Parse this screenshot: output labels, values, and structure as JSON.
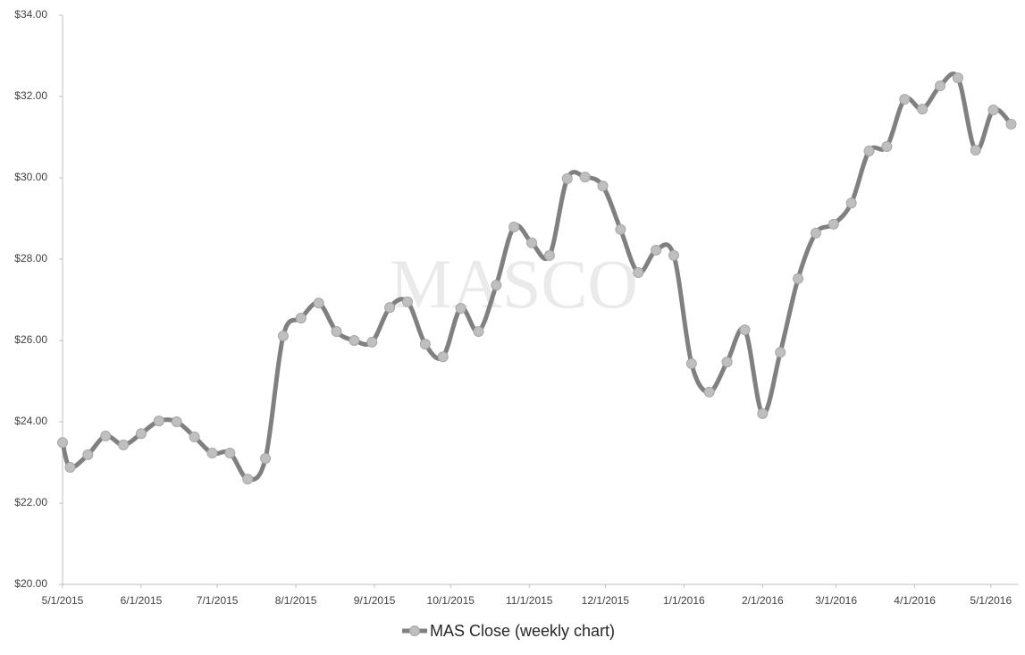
{
  "chart_data": {
    "type": "line",
    "watermark": "MASCO",
    "x": [
      "5/1/2015",
      "5/4/2015",
      "5/11/2015",
      "5/18/2015",
      "5/25/2015",
      "6/1/2015",
      "6/8/2015",
      "6/15/2015",
      "6/22/2015",
      "6/29/2015",
      "7/6/2015",
      "7/13/2015",
      "7/20/2015",
      "7/27/2015",
      "8/3/2015",
      "8/10/2015",
      "8/17/2015",
      "8/24/2015",
      "8/31/2015",
      "9/7/2015",
      "9/14/2015",
      "9/21/2015",
      "9/28/2015",
      "10/5/2015",
      "10/12/2015",
      "10/19/2015",
      "10/26/2015",
      "11/2/2015",
      "11/9/2015",
      "11/16/2015",
      "11/23/2015",
      "11/30/2015",
      "12/7/2015",
      "12/14/2015",
      "12/21/2015",
      "12/28/2015",
      "1/4/2016",
      "1/11/2016",
      "1/18/2016",
      "1/25/2016",
      "2/1/2016",
      "2/8/2016",
      "2/15/2016",
      "2/22/2016",
      "2/29/2016",
      "3/7/2016",
      "3/14/2016",
      "3/21/2016",
      "3/28/2016",
      "4/4/2016",
      "4/11/2016",
      "4/18/2016",
      "4/25/2016",
      "5/2/2016",
      "5/9/2016"
    ],
    "series": [
      {
        "name": "MAS Close (weekly chart)",
        "color": "#808080",
        "marker_color": "#bfbfbf",
        "values": [
          23.49,
          22.88,
          23.19,
          23.65,
          23.43,
          23.71,
          24.02,
          24.0,
          23.63,
          23.23,
          23.23,
          22.59,
          23.1,
          26.11,
          26.55,
          26.92,
          26.22,
          26.0,
          25.96,
          26.81,
          26.95,
          25.91,
          25.6,
          26.79,
          26.22,
          27.36,
          28.79,
          28.4,
          28.09,
          29.98,
          30.02,
          29.8,
          28.73,
          27.67,
          28.22,
          28.09,
          25.43,
          24.73,
          25.47,
          26.26,
          24.2,
          25.71,
          27.52,
          28.64,
          28.86,
          29.38,
          30.66,
          30.77,
          31.93,
          31.69,
          32.26,
          32.46,
          30.68,
          31.67,
          31.32
        ]
      }
    ],
    "xlim": [
      "5/1/2015",
      "5/12/2016"
    ],
    "xticks": [
      "5/1/2015",
      "6/1/2015",
      "7/1/2015",
      "8/1/2015",
      "9/1/2015",
      "10/1/2015",
      "11/1/2015",
      "12/1/2015",
      "1/1/2016",
      "2/1/2016",
      "3/1/2016",
      "4/1/2016",
      "5/1/2016"
    ],
    "ylim": [
      20,
      34
    ],
    "yticks": [
      {
        "value": 20,
        "label": "$20.00"
      },
      {
        "value": 22,
        "label": "$22.00"
      },
      {
        "value": 24,
        "label": "$24.00"
      },
      {
        "value": 26,
        "label": "$26.00"
      },
      {
        "value": 28,
        "label": "$28.00"
      },
      {
        "value": 30,
        "label": "$30.00"
      },
      {
        "value": 32,
        "label": "$32.00"
      },
      {
        "value": 34,
        "label": "$34.00"
      }
    ],
    "grid": false,
    "legend": "bottom"
  }
}
